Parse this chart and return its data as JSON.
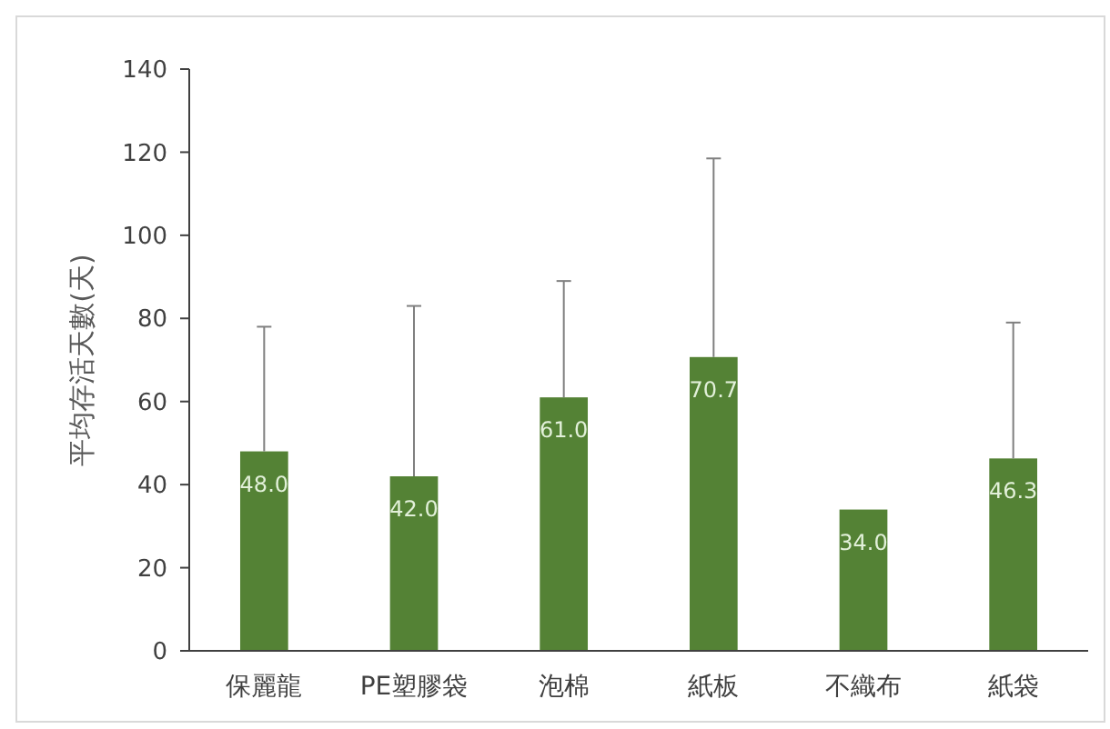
{
  "chart_data": {
    "type": "bar",
    "ylabel": "平均存活天數(天)",
    "categories": [
      "保麗龍",
      "PE塑膠袋",
      "泡棉",
      "紙板",
      "不織布",
      "紙袋"
    ],
    "values": [
      48.0,
      42.0,
      61.0,
      70.7,
      34.0,
      46.3
    ],
    "value_labels": [
      "48.0",
      "42.0",
      "61.0",
      "70.7",
      "34.0",
      "46.3"
    ],
    "errors": [
      [
        48.0,
        78
      ],
      [
        42.0,
        83
      ],
      [
        61.0,
        89
      ],
      [
        70.7,
        118.5
      ],
      null,
      [
        46.3,
        79
      ]
    ],
    "color": "#548235",
    "ylim": [
      0,
      140
    ],
    "yticks": [
      0,
      20,
      40,
      60,
      80,
      100,
      120,
      140
    ],
    "grid": false
  }
}
